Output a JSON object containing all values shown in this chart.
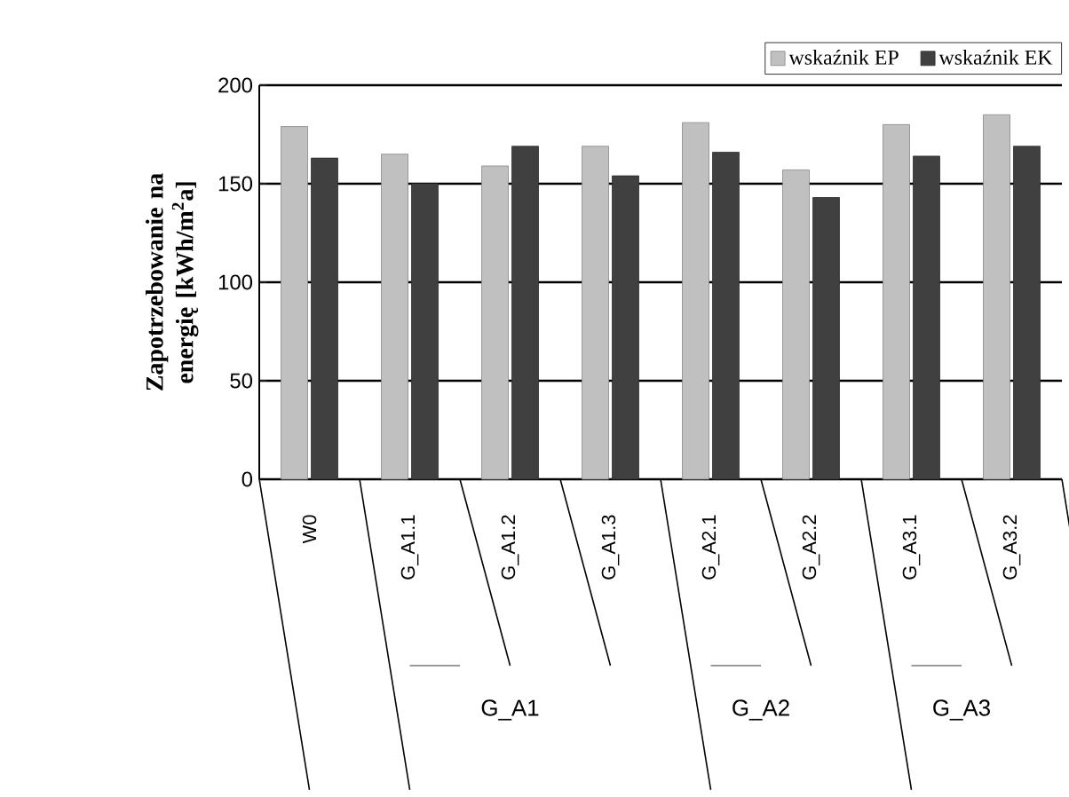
{
  "chart_data": {
    "type": "bar",
    "ylabel": "Zapotrzebowanie na energię [kWh/m$^{2}$a]",
    "categories": [
      "W0",
      "G_A1.1",
      "G_A1.2",
      "G_A1.3",
      "G_A2.1",
      "G_A2.2",
      "G_A3.1",
      "G_A3.2"
    ],
    "series": [
      {
        "name": "wskaźnik EP",
        "color": "#c0c0c0",
        "values": [
          179,
          165,
          159,
          169,
          181,
          157,
          180,
          185
        ]
      },
      {
        "name": "wskaźnik EK",
        "color": "#404040",
        "values": [
          163,
          150,
          169,
          154,
          166,
          143,
          164,
          169
        ]
      }
    ],
    "ylim": [
      0,
      200
    ],
    "yticks": [
      0,
      50,
      100,
      150,
      200
    ],
    "grid": "y",
    "legend": "top right",
    "annotations": [
      "G_A1",
      "G_A2",
      "G_A3"
    ]
  }
}
